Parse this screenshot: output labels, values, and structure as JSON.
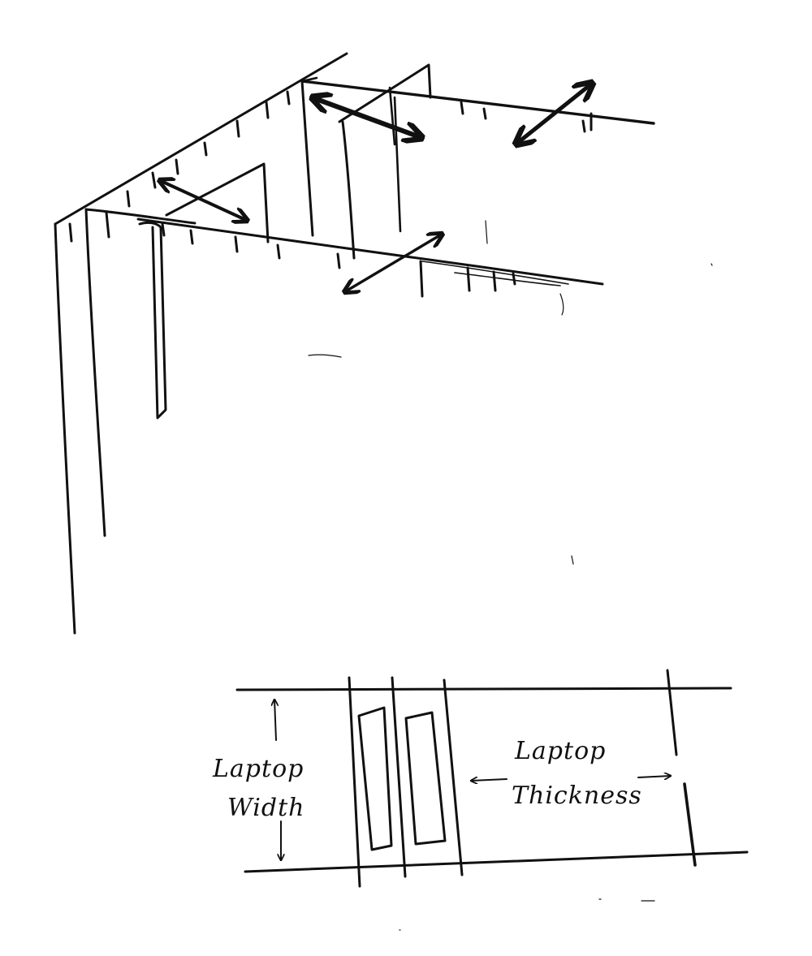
{
  "colors": {
    "ink": "#111111",
    "paper": "#ffffff"
  },
  "labels": {
    "laptop_width": [
      "Laptop",
      "Width"
    ],
    "laptop_thickness": [
      "Laptop",
      "Thickness"
    ]
  }
}
